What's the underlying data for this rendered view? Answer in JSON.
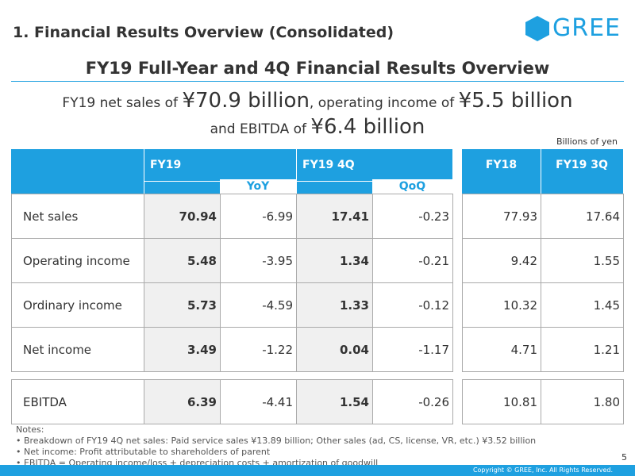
{
  "section_title": "1. Financial Results Overview (Consolidated)",
  "logo_text": "GREE",
  "main_title": "FY19 Full-Year and 4Q Financial Results Overview",
  "headline": {
    "l1_a": "FY19 net sales of ",
    "l1_b": "¥70.9 billion",
    "l1_c": ", operating income of ",
    "l1_d": "¥5.5 billion",
    "l2_a": "and EBITDA of ",
    "l2_b": "¥6.4 billion"
  },
  "units": "Billions of yen",
  "table": {
    "headers": {
      "fy19": "FY19",
      "fy19_4q": "FY19 4Q",
      "fy18": "FY18",
      "fy19_3q": "FY19 3Q"
    },
    "subheaders": {
      "yoy": "YoY",
      "qoq": "QoQ"
    },
    "rows": [
      {
        "label": "Net sales",
        "fy19": "70.94",
        "yoy": "-6.99",
        "q4": "17.41",
        "qoq": "-0.23",
        "fy18": "77.93",
        "q3": "17.64"
      },
      {
        "label": "Operating income",
        "fy19": "5.48",
        "yoy": "-3.95",
        "q4": "1.34",
        "qoq": "-0.21",
        "fy18": "9.42",
        "q3": "1.55"
      },
      {
        "label": "Ordinary income",
        "fy19": "5.73",
        "yoy": "-4.59",
        "q4": "1.33",
        "qoq": "-0.12",
        "fy18": "10.32",
        "q3": "1.45"
      },
      {
        "label": "Net income",
        "fy19": "3.49",
        "yoy": "-1.22",
        "q4": "0.04",
        "qoq": "-1.17",
        "fy18": "4.71",
        "q3": "1.21"
      },
      {
        "label": "EBITDA",
        "fy19": "6.39",
        "yoy": "-4.41",
        "q4": "1.54",
        "qoq": "-0.26",
        "fy18": "10.81",
        "q3": "1.80"
      }
    ]
  },
  "notes": {
    "title": "Notes:",
    "items": [
      "• Breakdown of FY19 4Q net sales: Paid service sales ¥13.89 billion; Other sales (ad, CS, license, VR, etc.) ¥3.52 billion",
      "• Net income: Profit attributable to shareholders of parent",
      "• EBITDA = Operating income/loss + depreciation costs + amortization of goodwill"
    ]
  },
  "page_number": "5",
  "copyright": "Copyright © GREE, Inc. All Rights Reserved.",
  "colors": {
    "accent": "#1ea0e0",
    "shade": "#f0f0f0",
    "grid": "#aaaaaa"
  }
}
